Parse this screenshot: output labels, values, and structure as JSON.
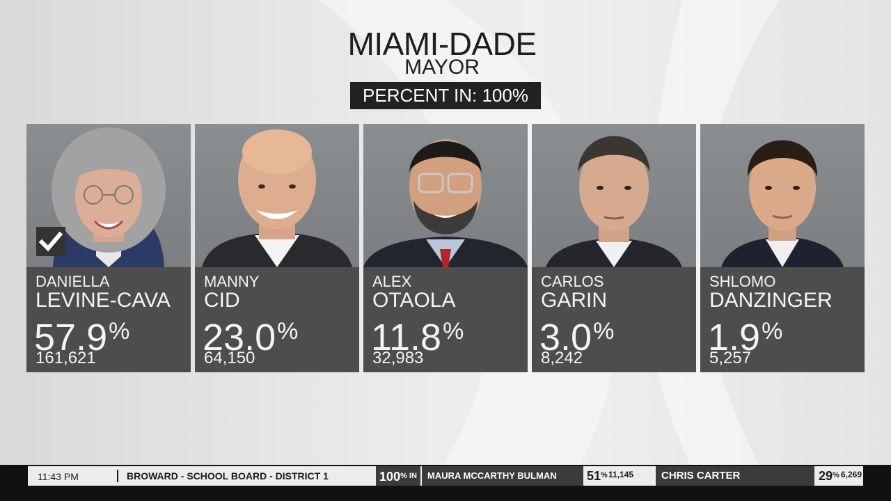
{
  "header": {
    "title": "MIAMI-DADE",
    "subtitle": "MAYOR",
    "percent_in": "PERCENT IN: 100%"
  },
  "candidates": [
    {
      "first": "DANIELLA",
      "last": "LEVINE-CAVA",
      "pct": "57.9",
      "votes": "161,621",
      "winner": true
    },
    {
      "first": "MANNY",
      "last": "CID",
      "pct": "23.0",
      "votes": "64,150",
      "winner": false
    },
    {
      "first": "ALEX",
      "last": "OTAOLA",
      "pct": "11.8",
      "votes": "32,983",
      "winner": false
    },
    {
      "first": "CARLOS",
      "last": "GARIN",
      "pct": "3.0",
      "votes": "8,242",
      "winner": false
    },
    {
      "first": "SHLOMO",
      "last": "DANZINGER",
      "pct": "1.9",
      "votes": "5,257",
      "winner": false
    }
  ],
  "percent_symbol": "%",
  "ticker": {
    "time": "11:43 PM",
    "race": "BROWARD - SCHOOL BOARD - DISTRICT 1",
    "reporting": "100",
    "reporting_suffix": "% IN",
    "candidate1": {
      "name": "MAURA MCCARTHY BULMAN",
      "pct": "51",
      "votes": "11,145"
    },
    "candidate2": {
      "name": "CHRIS CARTER",
      "pct": "29",
      "votes": "6,269"
    }
  },
  "colors": {
    "card_bg": "#4d4d4d",
    "badge_bg": "#222222",
    "ticker_dark": "#3b3b3b",
    "ticker_light": "#ececec"
  }
}
